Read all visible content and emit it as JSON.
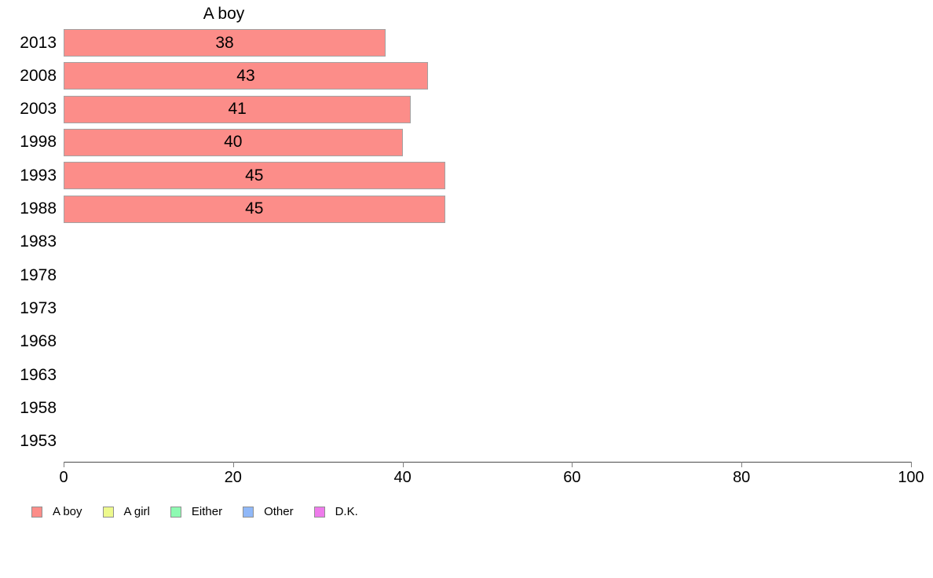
{
  "chart_data": {
    "type": "bar",
    "orientation": "horizontal",
    "title": "A boy",
    "categories": [
      "2013",
      "2008",
      "2003",
      "1998",
      "1993",
      "1988",
      "1983",
      "1978",
      "1973",
      "1968",
      "1963",
      "1958",
      "1953"
    ],
    "values": [
      38,
      43,
      41,
      40,
      45,
      45,
      null,
      null,
      null,
      null,
      null,
      null,
      null
    ],
    "value_labels_shown_inside_bars": true,
    "xlabel": "",
    "ylabel": "",
    "xlim": [
      0,
      100
    ],
    "x_ticks": [
      "0",
      "20",
      "40",
      "60",
      "80",
      "100"
    ],
    "x_tick_values": [
      0,
      20,
      40,
      60,
      80,
      100
    ],
    "grid": false,
    "bar_color": "#FC8D89",
    "bar_border_color": "#A3A3A3",
    "legend_position": "bottom-left",
    "legend": [
      {
        "label": "A boy",
        "color": "#FC8D89"
      },
      {
        "label": "A girl",
        "color": "#EDF98D"
      },
      {
        "label": "Either",
        "color": "#8EFAB2"
      },
      {
        "label": "Other",
        "color": "#90B8F8"
      },
      {
        "label": "D.K.",
        "color": "#EE7BEB"
      }
    ]
  }
}
